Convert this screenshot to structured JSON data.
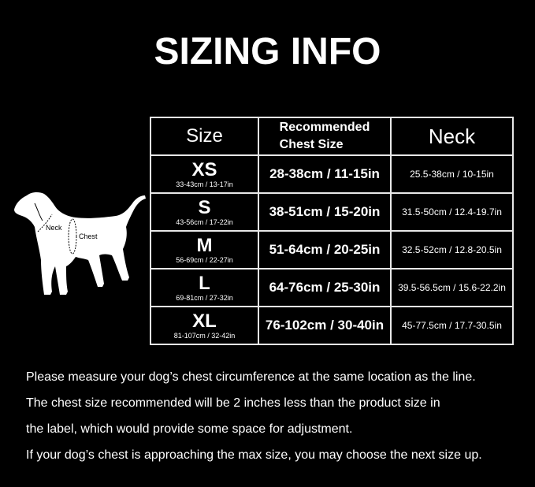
{
  "title": "SIZING INFO",
  "table": {
    "headers": {
      "size": "Size",
      "chest_line1": "Recommended",
      "chest_line2": "Chest Size",
      "neck": "Neck"
    },
    "rows": [
      {
        "size": "XS",
        "product_size": "33-43cm / 13-17in",
        "chest": "28-38cm / 11-15in",
        "neck": "25.5-38cm / 10-15in"
      },
      {
        "size": "S",
        "product_size": "43-56cm / 17-22in",
        "chest": "38-51cm / 15-20in",
        "neck": "31.5-50cm / 12.4-19.7in"
      },
      {
        "size": "M",
        "product_size": "56-69cm / 22-27in",
        "chest": "51-64cm / 20-25in",
        "neck": "32.5-52cm / 12.8-20.5in"
      },
      {
        "size": "L",
        "product_size": "69-81cm / 27-32in",
        "chest": "64-76cm / 25-30in",
        "neck": "39.5-56.5cm / 15.6-22.2in"
      },
      {
        "size": "XL",
        "product_size": "81-107cm / 32-42in",
        "chest": "76-102cm / 30-40in",
        "neck": "45-77.5cm / 17.7-30.5in"
      }
    ]
  },
  "diagram": {
    "neck_label": "Neck",
    "chest_label": "Chest"
  },
  "notes": [
    "Please measure your dog’s chest circumference at the same location as the line.",
    "The chest size recommended will be 2 inches less than the product size in",
    "the label, which would provide some space for adjustment.",
    "If your dog’s chest is approaching the max size, you may choose the next size up."
  ]
}
